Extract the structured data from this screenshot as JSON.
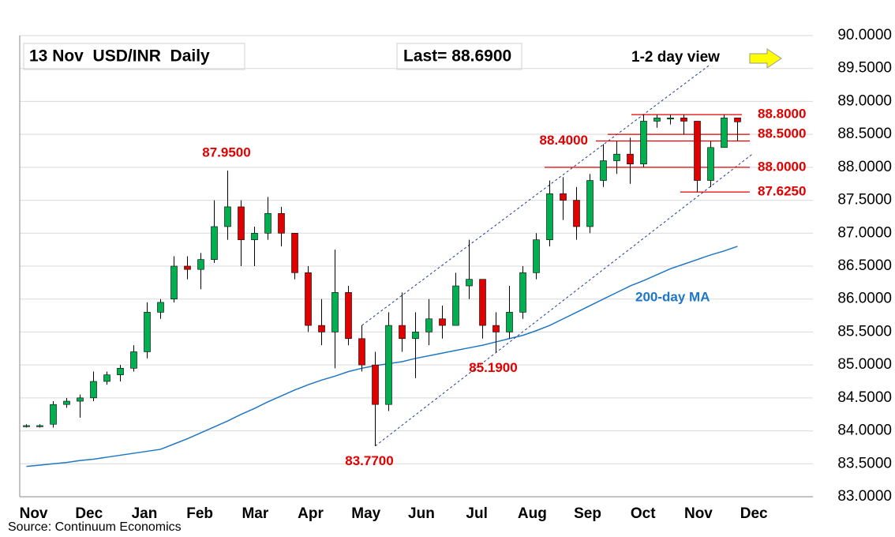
{
  "chart_data": {
    "type": "candlestick",
    "title": "13 Nov  USD/INR  Daily",
    "last": "Last= 88.6900",
    "view": "1-2 day view",
    "source": "Source: Continuum Economics",
    "months": [
      "Nov",
      "Dec",
      "Jan",
      "Feb",
      "Mar",
      "Apr",
      "May",
      "Jun",
      "Jul",
      "Aug",
      "Sep",
      "Oct",
      "Nov",
      "Dec"
    ],
    "ylim": [
      83,
      90
    ],
    "yticks": [
      {
        "value": 83,
        "label": "83.0000"
      },
      {
        "value": 83.5,
        "label": "83.5000"
      },
      {
        "value": 84,
        "label": "84.0000"
      },
      {
        "value": 84.5,
        "label": "84.5000"
      },
      {
        "value": 85,
        "label": "85.0000"
      },
      {
        "value": 85.5,
        "label": "85.5000"
      },
      {
        "value": 86,
        "label": "86.0000"
      },
      {
        "value": 86.5,
        "label": "86.5000"
      },
      {
        "value": 87,
        "label": "87.0000"
      },
      {
        "value": 87.5,
        "label": "87.5000"
      },
      {
        "value": 88,
        "label": "88.0000"
      },
      {
        "value": 88.5,
        "label": "88.5000"
      },
      {
        "value": 89,
        "label": "89.0000"
      },
      {
        "value": 89.5,
        "label": "89.5000"
      },
      {
        "value": 90,
        "label": "90.0000"
      }
    ],
    "grid": true,
    "up_color": "#00b050",
    "down_color": "#e00000",
    "level_color": "#e00000",
    "ohlc": [
      [
        84.07,
        84.1,
        84.05,
        84.08
      ],
      [
        84.08,
        84.1,
        84.05,
        84.08
      ],
      [
        84.1,
        84.45,
        84.05,
        84.4
      ],
      [
        84.4,
        84.5,
        84.35,
        84.45
      ],
      [
        84.45,
        84.55,
        84.2,
        84.5
      ],
      [
        84.5,
        84.9,
        84.45,
        84.75
      ],
      [
        84.75,
        84.9,
        84.7,
        84.85
      ],
      [
        84.85,
        85.0,
        84.75,
        84.95
      ],
      [
        84.95,
        85.3,
        84.9,
        85.2
      ],
      [
        85.2,
        85.95,
        85.1,
        85.8
      ],
      [
        85.8,
        86.0,
        85.7,
        85.95
      ],
      [
        86.0,
        86.65,
        85.95,
        86.5
      ],
      [
        86.5,
        86.65,
        86.3,
        86.45
      ],
      [
        86.45,
        86.7,
        86.15,
        86.6
      ],
      [
        86.6,
        87.5,
        86.55,
        87.1
      ],
      [
        87.1,
        87.95,
        86.9,
        87.4
      ],
      [
        87.4,
        87.5,
        86.5,
        86.9
      ],
      [
        86.9,
        87.1,
        86.5,
        87.0
      ],
      [
        87.0,
        87.55,
        86.9,
        87.3
      ],
      [
        87.3,
        87.4,
        86.8,
        87.0
      ],
      [
        87.0,
        87.0,
        86.3,
        86.4
      ],
      [
        86.4,
        86.5,
        85.5,
        85.6
      ],
      [
        85.6,
        86.0,
        85.3,
        85.5
      ],
      [
        85.5,
        86.75,
        84.95,
        86.1
      ],
      [
        86.1,
        86.2,
        85.3,
        85.4
      ],
      [
        85.4,
        85.6,
        84.9,
        85.0
      ],
      [
        85.0,
        85.2,
        83.77,
        84.4
      ],
      [
        84.4,
        85.8,
        84.3,
        85.6
      ],
      [
        85.6,
        86.1,
        85.2,
        85.4
      ],
      [
        85.4,
        85.8,
        84.8,
        85.5
      ],
      [
        85.5,
        86.0,
        85.3,
        85.7
      ],
      [
        85.7,
        85.9,
        85.4,
        85.6
      ],
      [
        85.6,
        86.4,
        85.6,
        86.2
      ],
      [
        86.2,
        86.9,
        86.0,
        86.3
      ],
      [
        86.3,
        86.3,
        85.4,
        85.6
      ],
      [
        85.6,
        85.8,
        85.19,
        85.5
      ],
      [
        85.5,
        86.2,
        85.4,
        85.8
      ],
      [
        85.8,
        86.5,
        85.7,
        86.4
      ],
      [
        86.4,
        87.0,
        86.3,
        86.9
      ],
      [
        86.9,
        87.8,
        86.8,
        87.6
      ],
      [
        87.6,
        87.85,
        87.2,
        87.5
      ],
      [
        87.5,
        87.7,
        86.9,
        87.1
      ],
      [
        87.1,
        87.9,
        87.0,
        87.8
      ],
      [
        87.8,
        88.35,
        87.7,
        88.1
      ],
      [
        88.1,
        88.4,
        87.9,
        88.2
      ],
      [
        88.2,
        88.45,
        87.75,
        88.05
      ],
      [
        88.05,
        88.8,
        88.0,
        88.7
      ],
      [
        88.7,
        88.8,
        88.6,
        88.75
      ],
      [
        88.75,
        88.8,
        88.65,
        88.75
      ],
      [
        88.75,
        88.8,
        88.5,
        88.7
      ],
      [
        88.7,
        88.7,
        87.62,
        87.8
      ],
      [
        87.8,
        88.4,
        87.7,
        88.3
      ],
      [
        88.3,
        88.8,
        88.3,
        88.75
      ],
      [
        88.75,
        88.75,
        88.4,
        88.69
      ]
    ],
    "ma": {
      "name": "200-day MA",
      "color": "#1f77c4",
      "values": [
        83.46,
        83.48,
        83.5,
        83.52,
        83.55,
        83.57,
        83.6,
        83.63,
        83.66,
        83.69,
        83.72,
        83.8,
        83.88,
        83.97,
        84.06,
        84.15,
        84.25,
        84.34,
        84.44,
        84.53,
        84.62,
        84.7,
        84.77,
        84.83,
        84.9,
        84.95,
        84.99,
        85.02,
        85.05,
        85.1,
        85.14,
        85.18,
        85.22,
        85.26,
        85.3,
        85.35,
        85.4,
        85.45,
        85.52,
        85.6,
        85.7,
        85.8,
        85.9,
        86.0,
        86.1,
        86.2,
        86.28,
        86.37,
        86.46,
        86.53,
        86.6,
        86.67,
        86.73,
        86.8
      ]
    },
    "channels": [
      {
        "x": [
          25,
          50.9
        ],
        "values": [
          85.6,
          89.55
        ]
      },
      {
        "x": [
          26,
          54.1
        ],
        "values": [
          83.77,
          88.2
        ]
      }
    ],
    "levels": [
      {
        "value": 88.8,
        "label": "88.8000"
      },
      {
        "value": 88.5,
        "label": "88.5000"
      },
      {
        "value": 88.4,
        "label": "88.4000"
      },
      {
        "value": 88.0,
        "label": "88.0000"
      },
      {
        "value": 87.625,
        "label": "87.6250"
      }
    ],
    "annotations": [
      {
        "value": 87.95,
        "label": "87.9500"
      },
      {
        "value": 85.19,
        "label": "85.1900"
      },
      {
        "value": 83.77,
        "label": "83.7700"
      }
    ]
  }
}
